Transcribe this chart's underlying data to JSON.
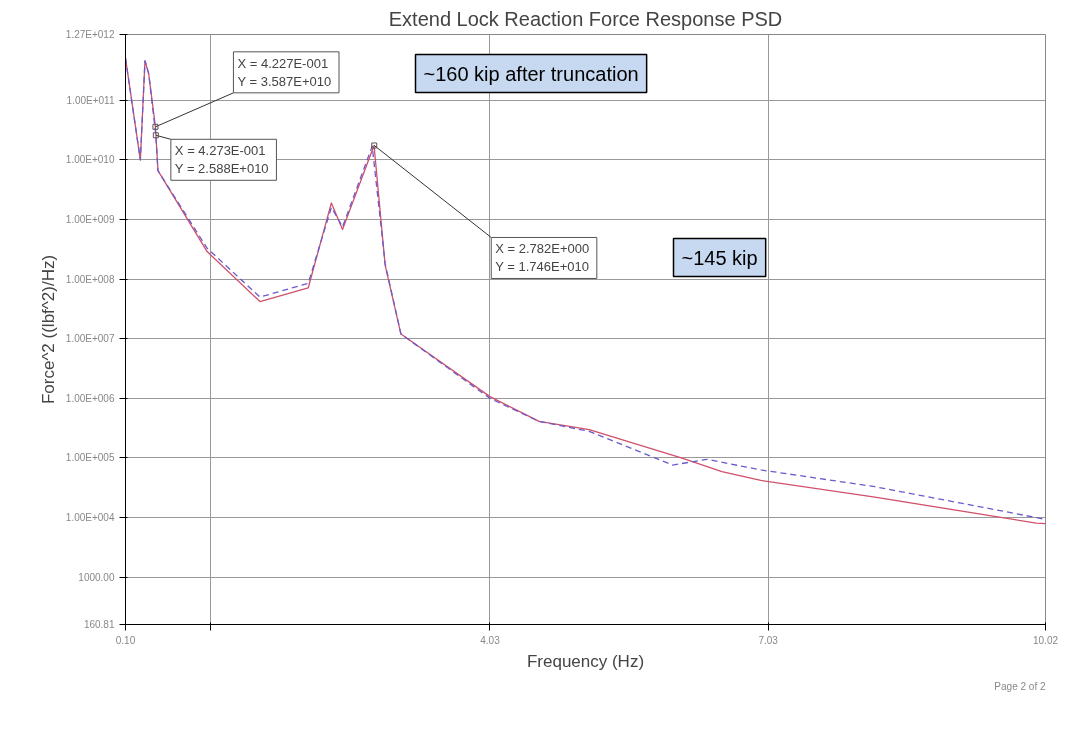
{
  "chart_data": {
    "type": "line",
    "title": "Extend Lock Reaction Force Response PSD",
    "xlabel": "Frequency (Hz)",
    "ylabel": "Force^2 ((lbf^2)/Hz)",
    "log": "y",
    "grid": true,
    "xlim": [
      0.1,
      10.02
    ],
    "xticks": [
      {
        "value": 0.1,
        "label": "0.10"
      },
      {
        "value": 1.02,
        "label": null
      },
      {
        "value": 4.03,
        "label": "4.03"
      },
      {
        "value": 7.03,
        "label": "7.03"
      },
      {
        "value": 10.02,
        "label": "10.02"
      }
    ],
    "ylim": [
      160.81,
      1270000000000.0
    ],
    "yticks": [
      {
        "value": 160.81,
        "label": "160.81"
      },
      {
        "value": 1000,
        "label": "1000.00"
      },
      {
        "value": 10000,
        "label": "1.00E+004"
      },
      {
        "value": 100000,
        "label": "1.00E+005"
      },
      {
        "value": 1000000,
        "label": "1.00E+006"
      },
      {
        "value": 10000000,
        "label": "1.00E+007"
      },
      {
        "value": 100000000,
        "label": "1.00E+008"
      },
      {
        "value": 1000000000,
        "label": "1.00E+009"
      },
      {
        "value": 10000000000,
        "label": "1.00E+010"
      },
      {
        "value": 100000000000,
        "label": "1.00E+011"
      },
      {
        "value": 1270000000000.0,
        "label": "1.27E+012"
      }
    ],
    "series": [
      {
        "color": "#d0506a",
        "line_style": "solid",
        "x": [
          0.1,
          0.26,
          0.31,
          0.35,
          0.4227,
          0.45,
          0.98,
          1.55,
          2.07,
          2.32,
          2.44,
          2.78,
          2.9,
          3.07,
          4.03,
          4.56,
          5.1,
          6.11,
          6.53,
          6.95,
          8.18,
          9.92,
          10.02
        ],
        "values": [
          510000000000.0,
          10000000000.0,
          460000000000.0,
          280000000000.0,
          35870000000.0,
          6600000000.0,
          290000000.0,
          42000000.0,
          71000000.0,
          1900000000.0,
          680000000.0,
          17460000000.0,
          170000000.0,
          12000000.0,
          1070000.0,
          410000.0,
          300000.0,
          98000.0,
          59000.0,
          42000.0,
          22000.0,
          8100.0,
          7900.0
        ]
      },
      {
        "color": "#6a5acd",
        "line_style": "dashed",
        "x": [
          0.1,
          0.26,
          0.31,
          0.35,
          0.4273,
          0.45,
          0.98,
          1.55,
          2.07,
          2.32,
          2.44,
          2.76,
          2.9,
          3.07,
          4.03,
          4.56,
          5.1,
          6.0,
          6.37,
          6.95,
          8.18,
          9.92,
          10.02
        ],
        "values": [
          510000000000.0,
          10000000000.0,
          460000000000.0,
          280000000000.0,
          25880000000.0,
          6600000000.0,
          330000000.0,
          50000000.0,
          85000000.0,
          1600000000.0,
          750000000.0,
          17000000000.0,
          180000000.0,
          12000000.0,
          1000000.0,
          410000.0,
          280000.0,
          76000.0,
          95000.0,
          63000.0,
          33000.0,
          10000.0,
          9300.0
        ]
      }
    ],
    "annotations": [
      {
        "text": "X =  4.227E-001\nY =  3.587E+010",
        "x": 0.4227,
        "y": 35870000000.0
      },
      {
        "text": "X =  4.273E-001\nY =  2.588E+010",
        "x": 0.4273,
        "y": 25880000000.0
      },
      {
        "text": "X =  2.782E+000\nY =  1.746E+010",
        "x": 2.782,
        "y": 17460000000.0
      },
      "~160 kip after truncation",
      "~145 kip",
      "Page 2 of 2"
    ]
  }
}
